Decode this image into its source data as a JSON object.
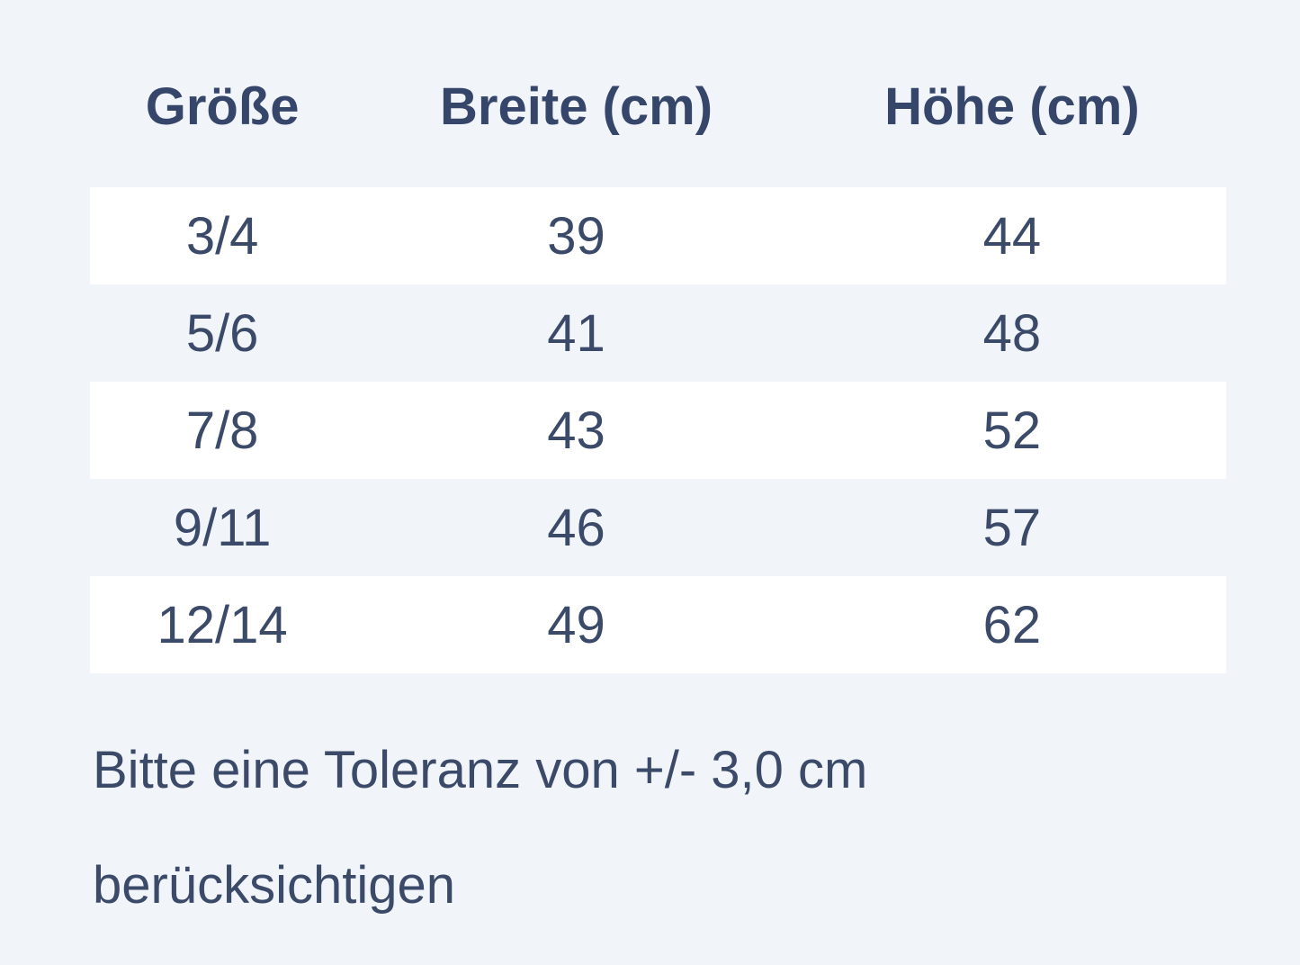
{
  "chart_data": {
    "type": "table",
    "columns": [
      "Größe",
      "Breite (cm)",
      "Höhe (cm)"
    ],
    "rows": [
      [
        "3/4",
        "39",
        "44"
      ],
      [
        "5/6",
        "41",
        "48"
      ],
      [
        "7/8",
        "43",
        "52"
      ],
      [
        "9/11",
        "46",
        "57"
      ],
      [
        "12/14",
        "49",
        "62"
      ]
    ],
    "note_full": "Bitte eine Toleranz von +/- 3,0 cm berücksichtigen",
    "note_lines": [
      "Bitte eine Toleranz von +/- 3,0 cm",
      "berücksichtigen"
    ]
  },
  "colors": {
    "page_background": "#f1f4f9",
    "stripe_row_background": "#ffffff",
    "text": "#3b4a68",
    "header_text": "#35466a"
  }
}
